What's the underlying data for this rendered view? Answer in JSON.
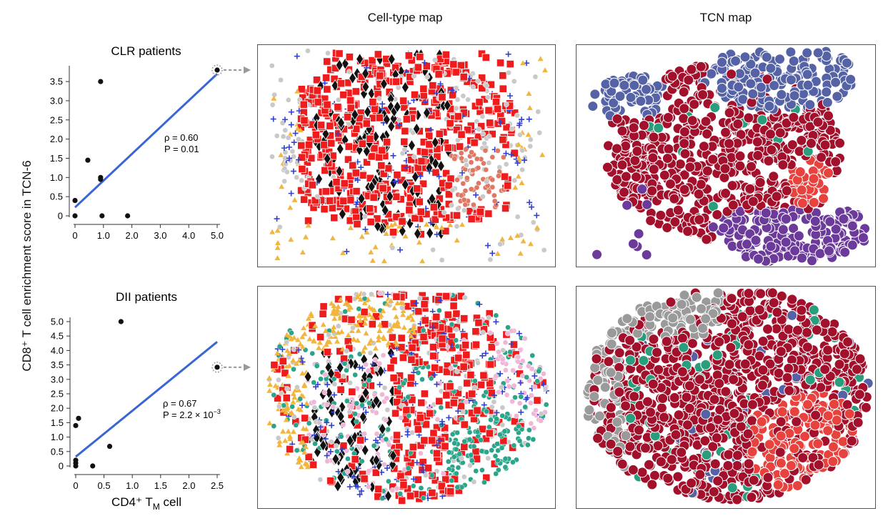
{
  "headers": {
    "cell_type_map": "Cell-type map",
    "tcn_map": "TCN map"
  },
  "shared_ylabel": "CD8⁺ T cell enrichment score in TCN-6",
  "colors": {
    "fit_line": "#3a66d4",
    "point": "#111111",
    "tcn_red": "#a3102c",
    "tcn_blue": "#5563a6",
    "tcn_purple": "#6b3a9a",
    "tcn_bright_red": "#e8423f",
    "tcn_teal": "#2a9d7c",
    "tcn_gray": "#9a9a9a",
    "ct_red_square": "#ee1c1c",
    "ct_black_diamond": "#111111",
    "ct_orange_triangle": "#f2b53d",
    "ct_blue_plus": "#3040d0",
    "ct_teal_circle": "#2aa58a",
    "ct_pink_circle": "#f0b6d8",
    "ct_salmon_circle": "#e07762",
    "ct_light_gray": "#c9c9c9"
  },
  "chart_data": [
    {
      "type": "scatter",
      "title": "CLR patients",
      "xlabel": "",
      "xlim": [
        0,
        5.0
      ],
      "ylim": [
        0,
        3.8
      ],
      "xticks": [
        "0",
        "1.0",
        "2.0",
        "3.0",
        "4.0",
        "5.0"
      ],
      "yticks": [
        "0",
        "0.5",
        "1.0",
        "1.5",
        "2.0",
        "2.5",
        "3.0",
        "3.5"
      ],
      "points": [
        {
          "x": 0.0,
          "y": 0.4
        },
        {
          "x": 0.0,
          "y": 0.0
        },
        {
          "x": 0.45,
          "y": 1.45
        },
        {
          "x": 0.9,
          "y": 3.5
        },
        {
          "x": 0.9,
          "y": 1.0
        },
        {
          "x": 0.9,
          "y": 0.95
        },
        {
          "x": 0.95,
          "y": 0.0
        },
        {
          "x": 1.85,
          "y": 0.0
        },
        {
          "x": 5.0,
          "y": 3.8
        }
      ],
      "highlight_index": 8,
      "fit_line": {
        "x0": 0.0,
        "y0": 0.22,
        "x1": 5.0,
        "y1": 3.7
      },
      "annotation": {
        "rho": "ρ = 0.60",
        "p": "P = 0.01"
      }
    },
    {
      "type": "scatter",
      "title": "DII patients",
      "xlabel": "CD4⁺ T",
      "xlabel_sub": "M",
      "xlabel_suffix": " cell",
      "xlim": [
        0,
        2.5
      ],
      "ylim": [
        0,
        5.0
      ],
      "xticks": [
        "0",
        "0.5",
        "1.0",
        "1.5",
        "2.0",
        "2.5"
      ],
      "yticks": [
        "0",
        "0.5",
        "1.0",
        "1.5",
        "2.0",
        "2.5",
        "3.0",
        "3.5",
        "4.0",
        "4.5",
        "5.0"
      ],
      "points": [
        {
          "x": 0.0,
          "y": 0.0
        },
        {
          "x": 0.0,
          "y": 0.1
        },
        {
          "x": 0.0,
          "y": 0.2
        },
        {
          "x": 0.0,
          "y": 1.4
        },
        {
          "x": 0.05,
          "y": 1.65
        },
        {
          "x": 0.3,
          "y": 0.0
        },
        {
          "x": 0.6,
          "y": 0.68
        },
        {
          "x": 0.8,
          "y": 5.0
        },
        {
          "x": 2.5,
          "y": 3.42
        }
      ],
      "highlight_index": 8,
      "fit_line": {
        "x0": 0.0,
        "y0": 0.32,
        "x1": 2.5,
        "y1": 4.3
      },
      "annotation": {
        "rho": "ρ = 0.67",
        "p": "P = 2.2 × 10",
        "p_exp": "−3"
      }
    }
  ]
}
